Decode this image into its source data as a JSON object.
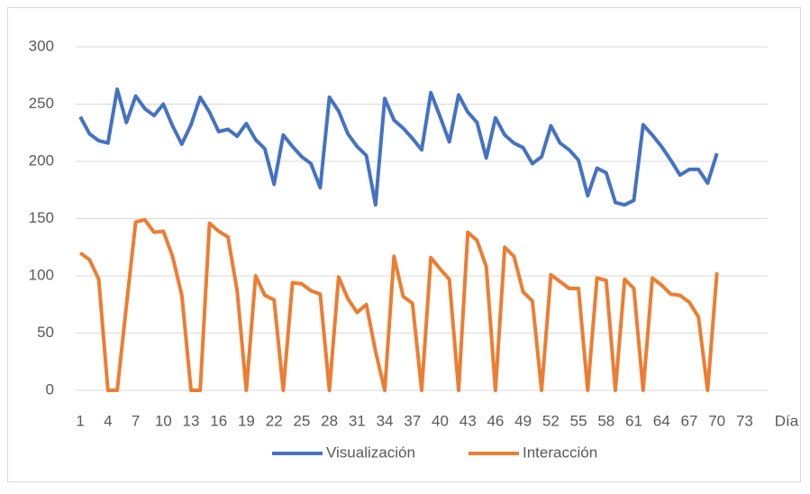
{
  "chart_data": {
    "type": "line",
    "x_label": "Día",
    "categories": [
      "1",
      null,
      null,
      "4",
      null,
      null,
      "7",
      null,
      null,
      "10",
      null,
      null,
      "13",
      null,
      null,
      "16",
      null,
      null,
      "19",
      null,
      null,
      "22",
      null,
      null,
      "25",
      null,
      null,
      "28",
      null,
      null,
      "31",
      null,
      null,
      "34",
      null,
      null,
      "37",
      null,
      null,
      "40",
      null,
      null,
      "43",
      null,
      null,
      "46",
      null,
      null,
      "49",
      null,
      null,
      "52",
      null,
      null,
      "55",
      null,
      null,
      "58",
      null,
      null,
      "61",
      null,
      null,
      "64",
      null,
      null,
      "67",
      null,
      null,
      "70",
      null,
      null,
      "73",
      null,
      null
    ],
    "series": [
      {
        "name": "Visualización",
        "color": "#4472c4",
        "values": [
          239,
          224,
          218,
          216,
          263,
          234,
          257,
          246,
          240,
          250,
          231,
          215,
          232,
          256,
          243,
          226,
          228,
          222,
          233,
          219,
          211,
          180,
          223,
          213,
          204,
          198,
          177,
          256,
          244,
          224,
          213,
          205,
          162,
          255,
          236,
          229,
          220,
          210,
          260,
          239,
          217,
          258,
          243,
          234,
          203,
          238,
          223,
          216,
          212,
          198,
          204,
          231,
          216,
          210,
          201,
          170,
          194,
          190,
          164,
          162,
          166,
          232,
          223,
          213,
          201,
          188,
          193,
          193,
          181,
          207,
          null,
          null,
          null,
          null,
          null
        ]
      },
      {
        "name": "Interacción",
        "color": "#ed7d31",
        "values": [
          120,
          114,
          97,
          0,
          0,
          74,
          147,
          149,
          138,
          139,
          117,
          83,
          0,
          0,
          146,
          139,
          134,
          87,
          0,
          100,
          83,
          79,
          0,
          94,
          93,
          87,
          84,
          0,
          99,
          80,
          68,
          75,
          34,
          0,
          117,
          82,
          76,
          0,
          116,
          106,
          97,
          0,
          138,
          131,
          108,
          0,
          125,
          117,
          86,
          78,
          0,
          101,
          95,
          89,
          89,
          0,
          98,
          96,
          0,
          97,
          89,
          0,
          98,
          92,
          84,
          83,
          77,
          64,
          0,
          103,
          null,
          null,
          null,
          null,
          null
        ]
      }
    ],
    "ylim": [
      0,
      300
    ],
    "yticks": [
      0,
      50,
      100,
      150,
      200,
      250,
      300
    ],
    "grid": true,
    "legend": "bottom"
  }
}
